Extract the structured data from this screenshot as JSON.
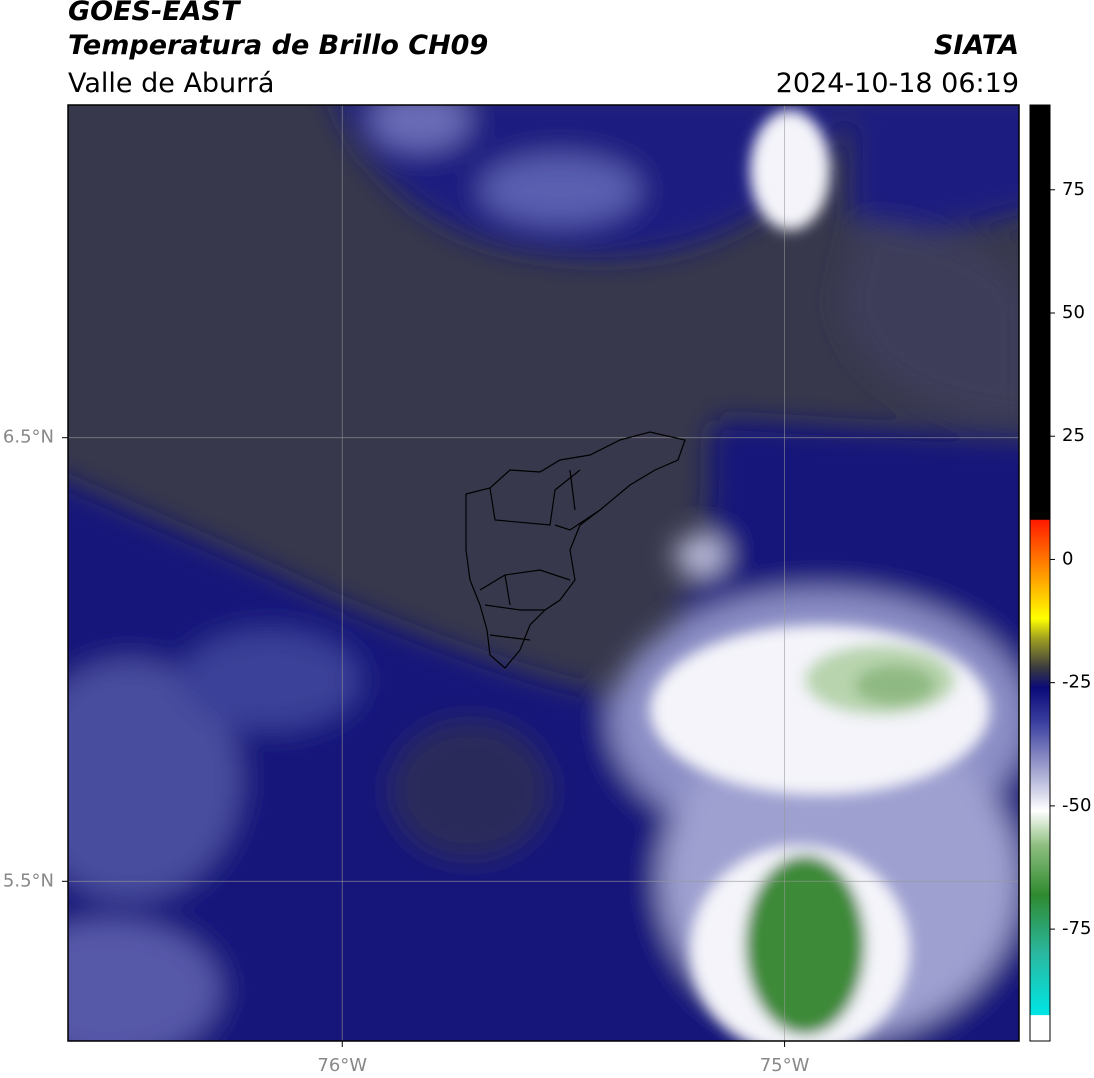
{
  "map": {
    "title": "GOES-EAST",
    "subtitle": "Temperatura de Brillo CH09",
    "region": "Valle de Aburrá",
    "source": "SIATA",
    "datetime": "2024-10-18 06:19",
    "xlim": [
      -76.62,
      -74.47
    ],
    "ylim": [
      5.14,
      7.25
    ],
    "xticks": [
      {
        "value": -76,
        "label": "76°W"
      },
      {
        "value": -75,
        "label": "75°W"
      }
    ],
    "yticks": [
      {
        "value": 5.5,
        "label": "5.5°N"
      },
      {
        "value": 6.5,
        "label": "6.5°N"
      }
    ],
    "grid": true,
    "colorbar": {
      "lim": [
        -97.7,
        92.2
      ],
      "ticks": [
        -75,
        -50,
        -25,
        0,
        25,
        50,
        75
      ],
      "colors": [
        {
          "value": -97.7,
          "color": "#ffffff"
        },
        {
          "value": -92.5,
          "color": "#ffffff"
        },
        {
          "value": -92.4,
          "color": "#00e5e5"
        },
        {
          "value": -80,
          "color": "#2ab8a0"
        },
        {
          "value": -68,
          "color": "#2f8a2f"
        },
        {
          "value": -58,
          "color": "#8ebf80"
        },
        {
          "value": -51,
          "color": "#ffffff"
        },
        {
          "value": -42,
          "color": "#9a9ccc"
        },
        {
          "value": -33,
          "color": "#3a3e9e"
        },
        {
          "value": -26,
          "color": "#0a0a78"
        },
        {
          "value": -22,
          "color": "#3a3a40"
        },
        {
          "value": -16,
          "color": "#a0a020"
        },
        {
          "value": -12,
          "color": "#ffff00"
        },
        {
          "value": -3,
          "color": "#ff9900"
        },
        {
          "value": 8,
          "color": "#ff1a00"
        },
        {
          "value": 8.1,
          "color": "#000000"
        },
        {
          "value": 92.2,
          "color": "#000000"
        }
      ]
    }
  }
}
